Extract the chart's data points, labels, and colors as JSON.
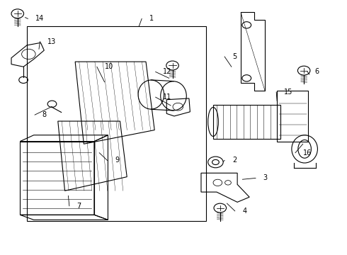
{
  "background_color": "#ffffff",
  "line_color": "#000000",
  "label_color": "#000000",
  "fig_width": 4.9,
  "fig_height": 3.6,
  "dpi": 100,
  "labels": [
    [
      1,
      0.43,
      0.93,
      0.4,
      0.9
    ],
    [
      2,
      0.67,
      0.37,
      0.644,
      0.365
    ],
    [
      3,
      0.76,
      0.3,
      0.7,
      0.295
    ],
    [
      4,
      0.7,
      0.17,
      0.655,
      0.2
    ],
    [
      5,
      0.67,
      0.78,
      0.668,
      0.74
    ],
    [
      6,
      0.91,
      0.72,
      0.894,
      0.71
    ],
    [
      7,
      0.22,
      0.19,
      0.195,
      0.23
    ],
    [
      8,
      0.12,
      0.55,
      0.148,
      0.583
    ],
    [
      9,
      0.33,
      0.37,
      0.285,
      0.4
    ],
    [
      10,
      0.3,
      0.74,
      0.3,
      0.68
    ],
    [
      11,
      0.47,
      0.62,
      0.492,
      0.587
    ],
    [
      12,
      0.47,
      0.72,
      0.487,
      0.695
    ],
    [
      13,
      0.135,
      0.84,
      0.11,
      0.81
    ],
    [
      14,
      0.1,
      0.93,
      0.07,
      0.935
    ],
    [
      15,
      0.82,
      0.64,
      0.8,
      0.605
    ],
    [
      16,
      0.875,
      0.4,
      0.875,
      0.435
    ]
  ]
}
